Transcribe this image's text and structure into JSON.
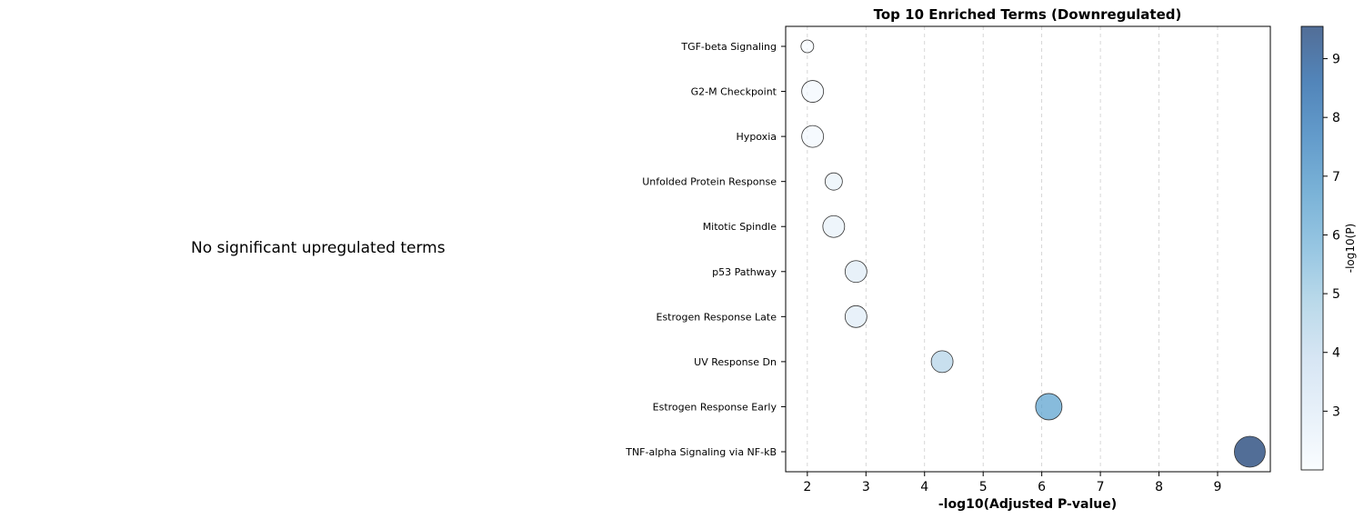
{
  "left_panel": {
    "message": "No significant upregulated terms"
  },
  "chart_data": {
    "type": "scatter",
    "title": "Top 10 Enriched Terms (Downregulated)",
    "xlabel": "-log10(Adjusted P-value)",
    "ylabel": "",
    "xlim": [
      1.63,
      9.9
    ],
    "xticks": [
      2,
      3,
      4,
      5,
      6,
      7,
      8,
      9
    ],
    "grid": "x dashed",
    "colorbar": {
      "label": "-log10(P)",
      "range": [
        2.0,
        9.55
      ],
      "ticks": [
        3,
        4,
        5,
        6,
        7,
        8,
        9
      ],
      "colormap": "Blues",
      "alpha": 0.7
    },
    "size_encoding": "gene count",
    "points": [
      {
        "term": "TGF-beta Signaling",
        "x": 2.0,
        "color_value": 2.0,
        "size": 1
      },
      {
        "term": "G2-M Checkpoint",
        "x": 2.09,
        "color_value": 2.2,
        "size": 3
      },
      {
        "term": "Hypoxia",
        "x": 2.09,
        "color_value": 2.2,
        "size": 3
      },
      {
        "term": "Unfolded Protein Response",
        "x": 2.45,
        "color_value": 2.55,
        "size": 2
      },
      {
        "term": "Mitotic Spindle",
        "x": 2.45,
        "color_value": 2.6,
        "size": 3
      },
      {
        "term": "p53 Pathway",
        "x": 2.83,
        "color_value": 2.95,
        "size": 3
      },
      {
        "term": "Estrogen Response Late",
        "x": 2.83,
        "color_value": 2.95,
        "size": 3
      },
      {
        "term": "UV Response Dn",
        "x": 4.3,
        "color_value": 4.4,
        "size": 3
      },
      {
        "term": "Estrogen Response Early",
        "x": 6.12,
        "color_value": 6.3,
        "size": 4
      },
      {
        "term": "TNF-alpha Signaling via NF-kB",
        "x": 9.55,
        "color_value": 9.6,
        "size": 5
      }
    ]
  }
}
